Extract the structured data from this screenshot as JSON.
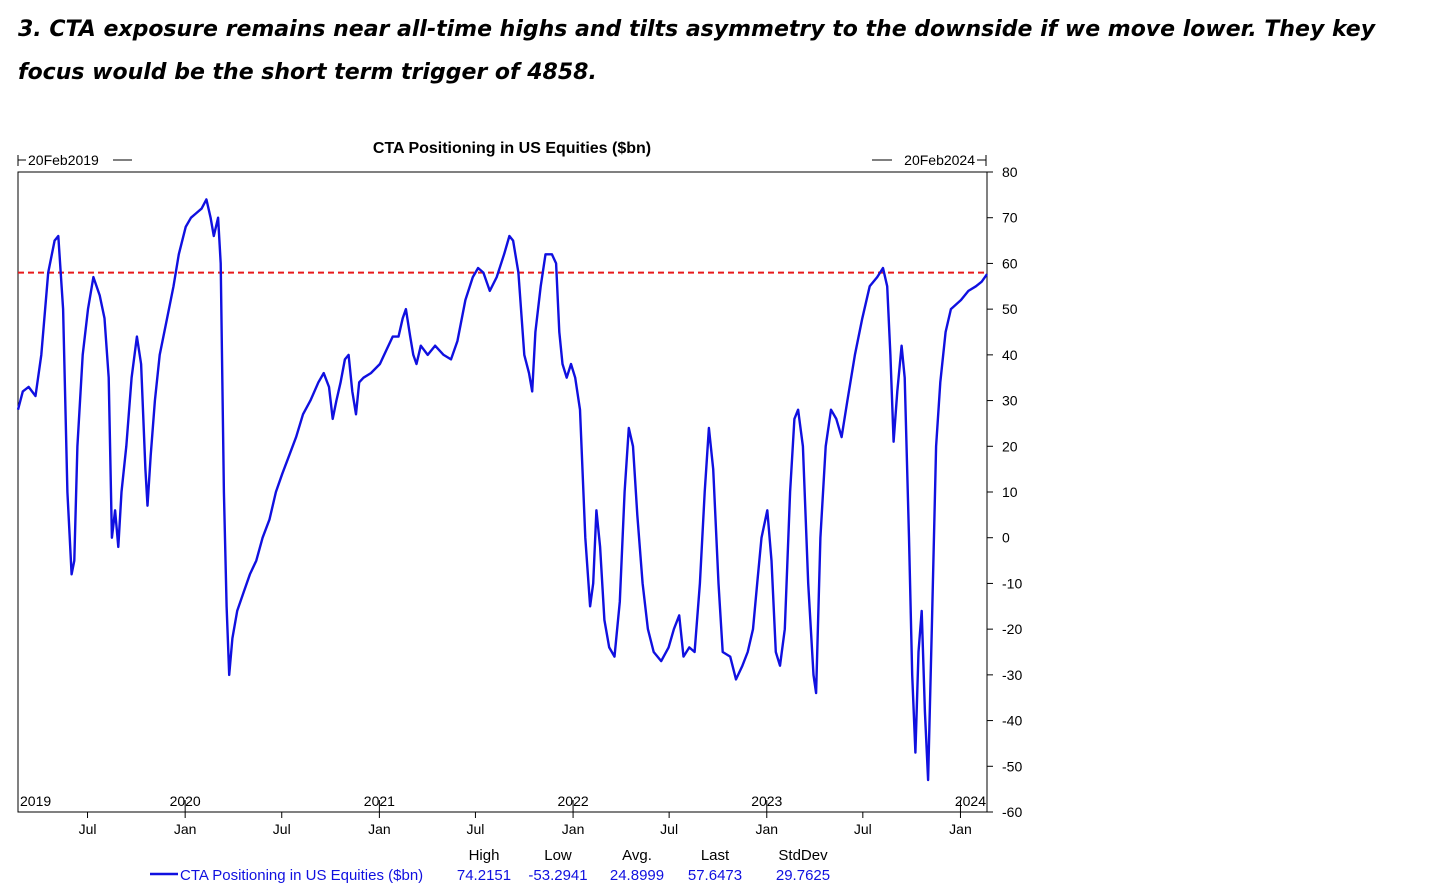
{
  "headline": "3. CTA exposure remains near all-time highs and tilts asymmetry to the downside if we move lower. They key focus would be the short term trigger of 4858.",
  "chart_data": {
    "type": "line",
    "title": "CTA Positioning in US Equities ($bn)",
    "start_label": "20Feb2019",
    "end_label": "20Feb2024",
    "ylim": [
      -60,
      80
    ],
    "yticks": [
      80,
      70,
      60,
      50,
      40,
      30,
      20,
      10,
      0,
      -10,
      -20,
      -30,
      -40,
      -50,
      -60
    ],
    "ytick_labels": [
      "80",
      "70",
      "60",
      "50",
      "40",
      "30",
      "20",
      "10",
      "0",
      "-10",
      "-20",
      "-30",
      "-40",
      "-50",
      "-60"
    ],
    "xlim": [
      "2019-02-20",
      "2024-02-20"
    ],
    "year_ticks": [
      {
        "label": "2019",
        "date": "2019-02-20"
      },
      {
        "label": "2020",
        "date": "2020-01-01"
      },
      {
        "label": "2021",
        "date": "2021-01-01"
      },
      {
        "label": "2022",
        "date": "2022-01-01"
      },
      {
        "label": "2023",
        "date": "2023-01-01"
      },
      {
        "label": "2024",
        "date": "2024-01-01"
      }
    ],
    "month_ticks": [
      {
        "label": "Jul",
        "date": "2019-07-01"
      },
      {
        "label": "Jan",
        "date": "2020-01-01"
      },
      {
        "label": "Jul",
        "date": "2020-07-01"
      },
      {
        "label": "Jan",
        "date": "2021-01-01"
      },
      {
        "label": "Jul",
        "date": "2021-07-01"
      },
      {
        "label": "Jan",
        "date": "2022-01-01"
      },
      {
        "label": "Jul",
        "date": "2022-07-01"
      },
      {
        "label": "Jan",
        "date": "2023-01-01"
      },
      {
        "label": "Jul",
        "date": "2023-07-01"
      },
      {
        "label": "Jan",
        "date": "2024-01-01"
      }
    ],
    "reference_line": {
      "y": 58,
      "color": "#e8191b",
      "style": "dashed"
    },
    "grid": false,
    "legend_position": "bottom",
    "series": [
      {
        "name": "CTA Positioning in US Equities ($bn)",
        "color": "#1010e0",
        "points": [
          [
            "2019-02-20",
            28
          ],
          [
            "2019-03-01",
            32
          ],
          [
            "2019-03-12",
            33
          ],
          [
            "2019-03-25",
            31
          ],
          [
            "2019-04-05",
            40
          ],
          [
            "2019-04-18",
            58
          ],
          [
            "2019-04-30",
            65
          ],
          [
            "2019-05-07",
            66
          ],
          [
            "2019-05-16",
            50
          ],
          [
            "2019-05-24",
            10
          ],
          [
            "2019-06-01",
            -8
          ],
          [
            "2019-06-06",
            -5
          ],
          [
            "2019-06-12",
            20
          ],
          [
            "2019-06-22",
            40
          ],
          [
            "2019-07-02",
            50
          ],
          [
            "2019-07-12",
            57
          ],
          [
            "2019-07-24",
            53
          ],
          [
            "2019-08-02",
            48
          ],
          [
            "2019-08-10",
            35
          ],
          [
            "2019-08-16",
            0
          ],
          [
            "2019-08-22",
            6
          ],
          [
            "2019-08-28",
            -2
          ],
          [
            "2019-09-03",
            10
          ],
          [
            "2019-09-12",
            20
          ],
          [
            "2019-09-22",
            35
          ],
          [
            "2019-10-02",
            44
          ],
          [
            "2019-10-10",
            38
          ],
          [
            "2019-10-18",
            15
          ],
          [
            "2019-10-22",
            7
          ],
          [
            "2019-10-28",
            18
          ],
          [
            "2019-11-05",
            30
          ],
          [
            "2019-11-14",
            40
          ],
          [
            "2019-11-28",
            48
          ],
          [
            "2019-12-10",
            55
          ],
          [
            "2019-12-20",
            62
          ],
          [
            "2020-01-02",
            68
          ],
          [
            "2020-01-12",
            70
          ],
          [
            "2020-01-22",
            71
          ],
          [
            "2020-02-01",
            72
          ],
          [
            "2020-02-10",
            74
          ],
          [
            "2020-02-18",
            70
          ],
          [
            "2020-02-24",
            66
          ],
          [
            "2020-03-03",
            70
          ],
          [
            "2020-03-08",
            60
          ],
          [
            "2020-03-14",
            10
          ],
          [
            "2020-03-19",
            -15
          ],
          [
            "2020-03-24",
            -30
          ],
          [
            "2020-03-30",
            -22
          ],
          [
            "2020-04-08",
            -16
          ],
          [
            "2020-04-20",
            -12
          ],
          [
            "2020-05-02",
            -8
          ],
          [
            "2020-05-14",
            -5
          ],
          [
            "2020-05-26",
            0
          ],
          [
            "2020-06-08",
            4
          ],
          [
            "2020-06-20",
            10
          ],
          [
            "2020-07-02",
            14
          ],
          [
            "2020-07-15",
            18
          ],
          [
            "2020-07-28",
            22
          ],
          [
            "2020-08-10",
            27
          ],
          [
            "2020-08-24",
            30
          ],
          [
            "2020-09-08",
            34
          ],
          [
            "2020-09-18",
            36
          ],
          [
            "2020-09-28",
            33
          ],
          [
            "2020-10-05",
            26
          ],
          [
            "2020-10-12",
            30
          ],
          [
            "2020-10-20",
            34
          ],
          [
            "2020-10-28",
            39
          ],
          [
            "2020-11-04",
            40
          ],
          [
            "2020-11-11",
            32
          ],
          [
            "2020-11-18",
            27
          ],
          [
            "2020-11-24",
            34
          ],
          [
            "2020-12-02",
            35
          ],
          [
            "2020-12-16",
            36
          ],
          [
            "2021-01-02",
            38
          ],
          [
            "2021-01-14",
            41
          ],
          [
            "2021-01-26",
            44
          ],
          [
            "2021-02-06",
            44
          ],
          [
            "2021-02-14",
            48
          ],
          [
            "2021-02-20",
            50
          ],
          [
            "2021-02-28",
            44
          ],
          [
            "2021-03-06",
            40
          ],
          [
            "2021-03-12",
            38
          ],
          [
            "2021-03-20",
            42
          ],
          [
            "2021-04-02",
            40
          ],
          [
            "2021-04-16",
            42
          ],
          [
            "2021-05-02",
            40
          ],
          [
            "2021-05-16",
            39
          ],
          [
            "2021-05-28",
            43
          ],
          [
            "2021-06-12",
            52
          ],
          [
            "2021-06-26",
            57
          ],
          [
            "2021-07-06",
            59
          ],
          [
            "2021-07-16",
            58
          ],
          [
            "2021-07-28",
            54
          ],
          [
            "2021-08-10",
            57
          ],
          [
            "2021-08-24",
            62
          ],
          [
            "2021-09-03",
            66
          ],
          [
            "2021-09-10",
            65
          ],
          [
            "2021-09-20",
            58
          ],
          [
            "2021-10-01",
            40
          ],
          [
            "2021-10-10",
            36
          ],
          [
            "2021-10-16",
            32
          ],
          [
            "2021-10-22",
            45
          ],
          [
            "2021-11-01",
            55
          ],
          [
            "2021-11-10",
            62
          ],
          [
            "2021-11-22",
            62
          ],
          [
            "2021-11-30",
            60
          ],
          [
            "2021-12-06",
            45
          ],
          [
            "2021-12-12",
            38
          ],
          [
            "2021-12-20",
            35
          ],
          [
            "2021-12-28",
            38
          ],
          [
            "2022-01-05",
            35
          ],
          [
            "2022-01-14",
            28
          ],
          [
            "2022-01-24",
            0
          ],
          [
            "2022-02-02",
            -15
          ],
          [
            "2022-02-08",
            -10
          ],
          [
            "2022-02-14",
            6
          ],
          [
            "2022-02-21",
            -2
          ],
          [
            "2022-03-01",
            -18
          ],
          [
            "2022-03-10",
            -24
          ],
          [
            "2022-03-20",
            -26
          ],
          [
            "2022-03-30",
            -14
          ],
          [
            "2022-04-08",
            10
          ],
          [
            "2022-04-16",
            24
          ],
          [
            "2022-04-24",
            20
          ],
          [
            "2022-05-02",
            5
          ],
          [
            "2022-05-12",
            -10
          ],
          [
            "2022-05-22",
            -20
          ],
          [
            "2022-06-02",
            -25
          ],
          [
            "2022-06-16",
            -27
          ],
          [
            "2022-06-30",
            -24
          ],
          [
            "2022-07-10",
            -20
          ],
          [
            "2022-07-20",
            -17
          ],
          [
            "2022-07-28",
            -26
          ],
          [
            "2022-08-08",
            -24
          ],
          [
            "2022-08-18",
            -25
          ],
          [
            "2022-08-28",
            -10
          ],
          [
            "2022-09-06",
            10
          ],
          [
            "2022-09-14",
            24
          ],
          [
            "2022-09-22",
            15
          ],
          [
            "2022-10-02",
            -10
          ],
          [
            "2022-10-10",
            -25
          ],
          [
            "2022-10-24",
            -26
          ],
          [
            "2022-11-04",
            -31
          ],
          [
            "2022-11-16",
            -28
          ],
          [
            "2022-11-26",
            -25
          ],
          [
            "2022-12-06",
            -20
          ],
          [
            "2022-12-14",
            -10
          ],
          [
            "2022-12-22",
            0
          ],
          [
            "2023-01-02",
            6
          ],
          [
            "2023-01-10",
            -5
          ],
          [
            "2023-01-18",
            -25
          ],
          [
            "2023-01-26",
            -28
          ],
          [
            "2023-02-04",
            -20
          ],
          [
            "2023-02-14",
            10
          ],
          [
            "2023-02-22",
            26
          ],
          [
            "2023-03-01",
            28
          ],
          [
            "2023-03-10",
            20
          ],
          [
            "2023-03-20",
            -10
          ],
          [
            "2023-03-30",
            -30
          ],
          [
            "2023-04-04",
            -34
          ],
          [
            "2023-04-12",
            0
          ],
          [
            "2023-04-22",
            20
          ],
          [
            "2023-05-02",
            28
          ],
          [
            "2023-05-12",
            26
          ],
          [
            "2023-05-22",
            22
          ],
          [
            "2023-06-02",
            30
          ],
          [
            "2023-06-16",
            40
          ],
          [
            "2023-06-30",
            48
          ],
          [
            "2023-07-14",
            55
          ],
          [
            "2023-07-28",
            57
          ],
          [
            "2023-08-08",
            59
          ],
          [
            "2023-08-16",
            55
          ],
          [
            "2023-08-22",
            40
          ],
          [
            "2023-08-28",
            21
          ],
          [
            "2023-09-04",
            32
          ],
          [
            "2023-09-12",
            42
          ],
          [
            "2023-09-18",
            35
          ],
          [
            "2023-09-26",
            0
          ],
          [
            "2023-10-02",
            -30
          ],
          [
            "2023-10-08",
            -47
          ],
          [
            "2023-10-14",
            -25
          ],
          [
            "2023-10-20",
            -16
          ],
          [
            "2023-10-26",
            -38
          ],
          [
            "2023-11-01",
            -53
          ],
          [
            "2023-11-08",
            -20
          ],
          [
            "2023-11-16",
            20
          ],
          [
            "2023-11-24",
            34
          ],
          [
            "2023-12-04",
            45
          ],
          [
            "2023-12-14",
            50
          ],
          [
            "2024-01-02",
            52
          ],
          [
            "2024-01-16",
            54
          ],
          [
            "2024-01-30",
            55
          ],
          [
            "2024-02-10",
            56
          ],
          [
            "2024-02-20",
            57.6473
          ]
        ]
      }
    ],
    "stats": {
      "headers": [
        "High",
        "Low",
        "Avg.",
        "Last",
        "StdDev"
      ],
      "values": [
        "74.2151",
        "-53.2941",
        "24.8999",
        "57.6473",
        "29.7625"
      ]
    }
  }
}
